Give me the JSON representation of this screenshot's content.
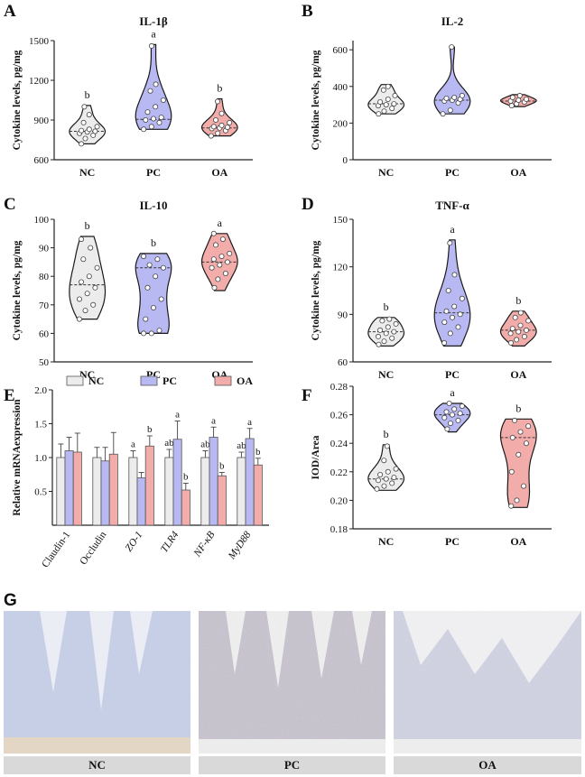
{
  "group_colors": {
    "NC": "#ececec",
    "PC": "#b8b9f2",
    "OA": "#f2adab"
  },
  "chart_data": [
    {
      "id": "A",
      "type": "violin",
      "panel_label": "A",
      "title": "IL-1β",
      "ylabel": "Cytokine levels, pg/mg",
      "ylim": [
        600,
        1500
      ],
      "yticks": [
        600,
        900,
        1200,
        1500
      ],
      "categories": [
        "NC",
        "PC",
        "OA"
      ],
      "sig_letters": [
        "b",
        "a",
        "b"
      ],
      "groups": [
        {
          "name": "NC",
          "min": 720,
          "max": 1010,
          "median": 815,
          "points": [
            720,
            760,
            785,
            800,
            810,
            815,
            820,
            830,
            850,
            880,
            940,
            1000
          ]
        },
        {
          "name": "PC",
          "min": 830,
          "max": 1470,
          "median": 905,
          "points": [
            830,
            850,
            880,
            900,
            910,
            920,
            960,
            1000,
            1050,
            1120,
            1170,
            1460
          ]
        },
        {
          "name": "OA",
          "min": 780,
          "max": 1060,
          "median": 840,
          "points": [
            780,
            800,
            820,
            835,
            840,
            845,
            850,
            860,
            880,
            900,
            950,
            1040
          ]
        }
      ]
    },
    {
      "id": "B",
      "type": "violin",
      "panel_label": "B",
      "title": "IL-2",
      "ylabel": "Cytokine levels, pg/mg",
      "ylim": [
        0,
        650
      ],
      "yticks": [
        0,
        200,
        400,
        600
      ],
      "categories": [
        "NC",
        "PC",
        "OA"
      ],
      "sig_letters": [
        "",
        "",
        ""
      ],
      "groups": [
        {
          "name": "NC",
          "min": 250,
          "max": 410,
          "median": 305,
          "points": [
            250,
            265,
            280,
            295,
            300,
            305,
            315,
            330,
            350,
            380,
            400
          ]
        },
        {
          "name": "PC",
          "min": 250,
          "max": 615,
          "median": 325,
          "points": [
            250,
            270,
            310,
            320,
            325,
            330,
            335,
            340,
            350,
            615
          ]
        },
        {
          "name": "OA",
          "min": 290,
          "max": 355,
          "median": 320,
          "points": [
            295,
            305,
            315,
            320,
            325,
            330,
            340,
            350
          ]
        }
      ]
    },
    {
      "id": "C",
      "type": "violin",
      "panel_label": "C",
      "title": "IL-10",
      "ylabel": "Cytokine levels, pg/mg",
      "ylim": [
        50,
        100
      ],
      "yticks": [
        50,
        60,
        70,
        80,
        90,
        100
      ],
      "categories": [
        "NC",
        "PC",
        "OA"
      ],
      "sig_letters": [
        "b",
        "b",
        "a"
      ],
      "groups": [
        {
          "name": "NC",
          "min": 65,
          "max": 94,
          "median": 77,
          "points": [
            65,
            68,
            70,
            72,
            74,
            76,
            78,
            80,
            83,
            86,
            90,
            93
          ]
        },
        {
          "name": "PC",
          "min": 60,
          "max": 88,
          "median": 83,
          "points": [
            60,
            60,
            61,
            65,
            69,
            72,
            76,
            80,
            83,
            84,
            86,
            87
          ]
        },
        {
          "name": "OA",
          "min": 75,
          "max": 95,
          "median": 85,
          "points": [
            76,
            79,
            81,
            83,
            84,
            85,
            86,
            87,
            88,
            91,
            93,
            95
          ]
        }
      ]
    },
    {
      "id": "D",
      "type": "violin",
      "panel_label": "D",
      "title": "TNF-α",
      "ylabel": "Cytokine levels, pg/mg",
      "ylim": [
        60,
        150
      ],
      "yticks": [
        60,
        90,
        120,
        150
      ],
      "categories": [
        "NC",
        "PC",
        "OA"
      ],
      "sig_letters": [
        "b",
        "a",
        "b"
      ],
      "groups": [
        {
          "name": "NC",
          "min": 70,
          "max": 88,
          "median": 79,
          "points": [
            71,
            73,
            75,
            76,
            78,
            79,
            80,
            82,
            84,
            86,
            87
          ]
        },
        {
          "name": "PC",
          "min": 70,
          "max": 137,
          "median": 91,
          "points": [
            72,
            78,
            82,
            85,
            88,
            90,
            92,
            95,
            100,
            105,
            115,
            135
          ]
        },
        {
          "name": "OA",
          "min": 70,
          "max": 92,
          "median": 80,
          "points": [
            72,
            74,
            76,
            78,
            79,
            80,
            81,
            83,
            86,
            88,
            91
          ]
        }
      ]
    },
    {
      "id": "E",
      "type": "bar",
      "panel_label": "E",
      "ylabel": "Relative mRNAexpression",
      "ylim": [
        0,
        2.0
      ],
      "yticks": [
        0.5,
        1.0,
        1.5,
        2.0
      ],
      "ytick_labels": [
        "0.5",
        "1.0",
        "1.5",
        "2.0"
      ],
      "categories": [
        "Claudin-1",
        "Occludin",
        "ZO-1",
        "TLR4",
        "NF-κB",
        "MyD88"
      ],
      "italic_categories": [
        false,
        false,
        true,
        true,
        true,
        true
      ],
      "legend": [
        "NC",
        "PC",
        "OA"
      ],
      "series": [
        {
          "name": "NC",
          "values": [
            1.0,
            1.0,
            1.0,
            1.0,
            1.0,
            1.0
          ],
          "errors": [
            0.2,
            0.15,
            0.1,
            0.12,
            0.1,
            0.08
          ],
          "letters": [
            "",
            "",
            "a",
            "ab",
            "ab",
            "ab"
          ]
        },
        {
          "name": "PC",
          "values": [
            1.1,
            0.95,
            0.7,
            1.27,
            1.3,
            1.28
          ],
          "errors": [
            0.2,
            0.2,
            0.08,
            0.27,
            0.15,
            0.15
          ],
          "letters": [
            "",
            "",
            "",
            "a",
            "a",
            "a"
          ]
        },
        {
          "name": "OA",
          "values": [
            1.08,
            1.05,
            1.17,
            0.52,
            0.73,
            0.89
          ],
          "errors": [
            0.28,
            0.32,
            0.15,
            0.1,
            0.05,
            0.1
          ],
          "letters": [
            "",
            "",
            "b",
            "b",
            "b",
            "b"
          ]
        }
      ]
    },
    {
      "id": "F",
      "type": "violin",
      "panel_label": "F",
      "ylabel": "IOD/Area",
      "ylim": [
        0.18,
        0.28
      ],
      "yticks": [
        0.18,
        0.2,
        0.22,
        0.24,
        0.26,
        0.28
      ],
      "ytick_labels": [
        "0.18",
        "0.20",
        "0.22",
        "0.24",
        "0.26",
        "0.28"
      ],
      "categories": [
        "NC",
        "PC",
        "OA"
      ],
      "sig_letters": [
        "b",
        "a",
        "b"
      ],
      "groups": [
        {
          "name": "NC",
          "min": 0.207,
          "max": 0.239,
          "median": 0.215,
          "points": [
            0.208,
            0.21,
            0.212,
            0.214,
            0.215,
            0.216,
            0.218,
            0.22,
            0.222,
            0.228,
            0.238
          ]
        },
        {
          "name": "PC",
          "min": 0.248,
          "max": 0.268,
          "median": 0.26,
          "points": [
            0.25,
            0.254,
            0.256,
            0.258,
            0.26,
            0.261,
            0.262,
            0.264,
            0.266,
            0.268
          ]
        },
        {
          "name": "OA",
          "min": 0.195,
          "max": 0.257,
          "median": 0.244,
          "points": [
            0.196,
            0.2,
            0.21,
            0.22,
            0.232,
            0.24,
            0.244,
            0.248,
            0.252,
            0.256
          ]
        }
      ]
    }
  ],
  "micrographs": {
    "panel_label": "G",
    "labels": [
      "NC",
      "PC",
      "OA"
    ]
  }
}
